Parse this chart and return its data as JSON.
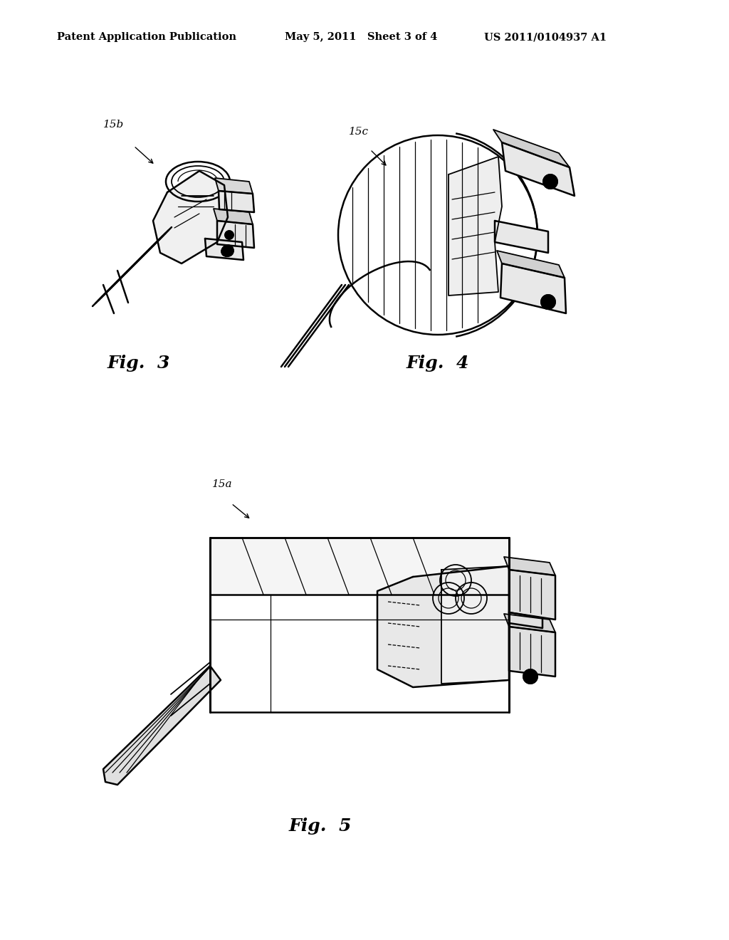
{
  "background_color": "#ffffff",
  "header_left": "Patent Application Publication",
  "header_center": "May 5, 2011   Sheet 3 of 4",
  "header_right": "US 2011/0104937 A1",
  "header_fontsize": 10.5,
  "header_fontweight": "bold",
  "fig3_label": "Fig.  3",
  "fig4_label": "Fig.  4",
  "fig5_label": "Fig.  5",
  "fig_label_fontsize": 18,
  "ref_fontsize": 11,
  "lw_main": 1.8,
  "lw_thin": 0.9,
  "lw_med": 1.3
}
